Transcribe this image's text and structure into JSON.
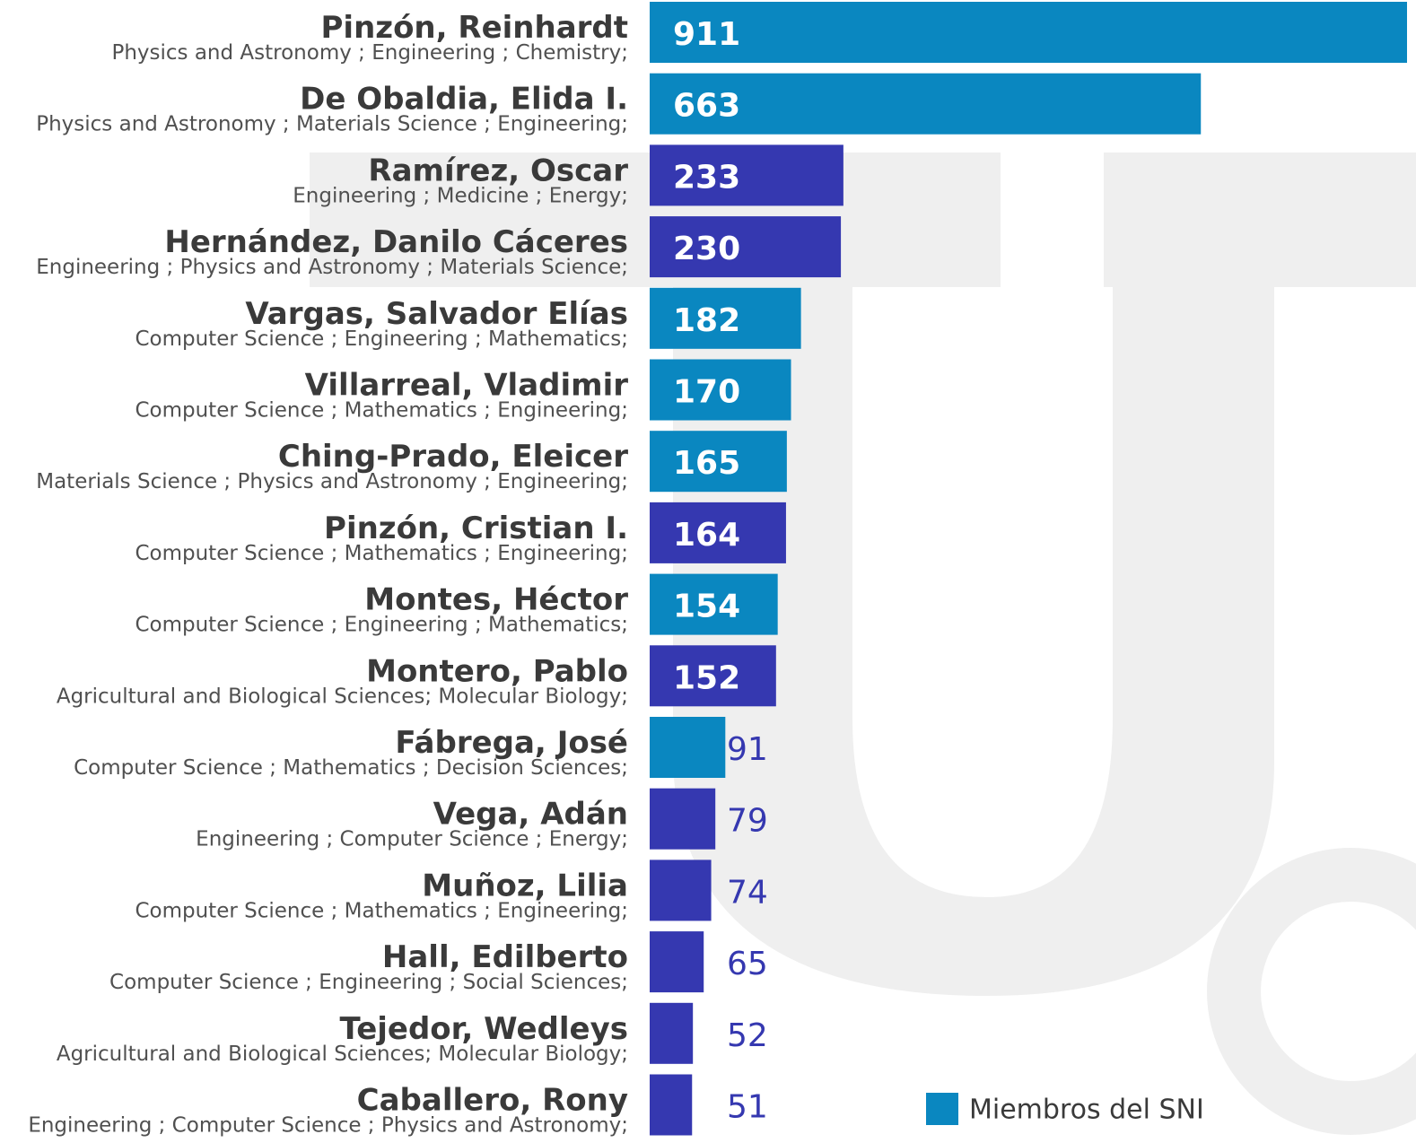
{
  "chart_data": {
    "type": "bar",
    "orientation": "horizontal",
    "categories": [
      "Pinzón, Reinhardt",
      "De Obaldia, Elida I.",
      "Ramírez, Oscar",
      "Hernández, Danilo Cáceres",
      "Vargas, Salvador Elías",
      "Villarreal, Vladimir",
      "Ching-Prado, Eleicer",
      "Pinzón, Cristian I.",
      "Montes, Héctor",
      "Montero, Pablo",
      "Fábrega, José",
      "Vega, Adán",
      "Muñoz, Lilia",
      "Hall, Edilberto",
      "Tejedor, Wedleys",
      "Caballero, Rony"
    ],
    "subtitles": [
      "Physics and Astronomy ; Engineering ; Chemistry;",
      "Physics and Astronomy ; Materials Science ; Engineering;",
      "Engineering ; Medicine ; Energy;",
      "Engineering ; Physics and Astronomy ; Materials Science;",
      "Computer Science ; Engineering ; Mathematics;",
      "Computer Science ; Mathematics ; Engineering;",
      "Materials Science ; Physics and Astronomy ; Engineering;",
      "Computer Science ; Mathematics ; Engineering;",
      "Computer Science ; Engineering ; Mathematics;",
      "Agricultural and Biological Sciences; Molecular Biology;",
      "Computer Science ; Mathematics ; Decision Sciences;",
      "Engineering ; Computer Science ; Energy;",
      "Computer Science ; Mathematics ; Engineering;",
      "Computer Science ; Engineering ; Social Sciences;",
      "Agricultural and Biological Sciences; Molecular Biology;",
      "Engineering ; Computer Science ; Physics and Astronomy;"
    ],
    "values": [
      911,
      663,
      233,
      230,
      182,
      170,
      165,
      164,
      154,
      152,
      91,
      79,
      74,
      65,
      52,
      51
    ],
    "colors": [
      "#0a87c0",
      "#0a87c0",
      "#3538b0",
      "#3538b0",
      "#0a87c0",
      "#0a87c0",
      "#0a87c0",
      "#3538b0",
      "#0a87c0",
      "#3538b0",
      "#0a87c0",
      "#3538b0",
      "#3538b0",
      "#3538b0",
      "#3538b0",
      "#3538b0"
    ],
    "xlim": [
      0,
      911
    ],
    "legend": {
      "label": "Miembros del SNI",
      "color": "#0a87c0",
      "position": "lower right"
    }
  }
}
